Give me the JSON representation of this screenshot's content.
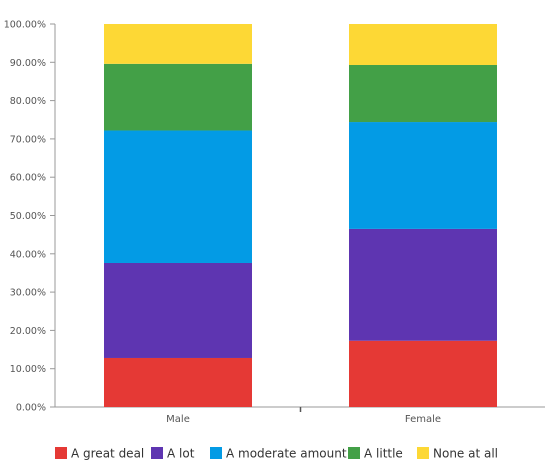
{
  "chart_data": {
    "type": "bar",
    "stacked": true,
    "categories": [
      "Male",
      "Female"
    ],
    "series": [
      {
        "name": "A great deal",
        "values": [
          12.8,
          17.3
        ],
        "color": "#e53935"
      },
      {
        "name": "A lot",
        "values": [
          24.8,
          29.2
        ],
        "color": "#5e35b1"
      },
      {
        "name": "A moderate amount",
        "values": [
          34.6,
          27.9
        ],
        "color": "#039be5"
      },
      {
        "name": "A little",
        "values": [
          17.4,
          14.9
        ],
        "color": "#43a047"
      },
      {
        "name": "None at all",
        "values": [
          10.4,
          10.7
        ],
        "color": "#fdd835"
      }
    ],
    "yticks": [
      "0.00%",
      "10.00%",
      "20.00%",
      "30.00%",
      "40.00%",
      "50.00%",
      "60.00%",
      "70.00%",
      "80.00%",
      "90.00%",
      "100.00%"
    ],
    "ylim": [
      0,
      100
    ],
    "grid": false,
    "legend": "bottom"
  }
}
